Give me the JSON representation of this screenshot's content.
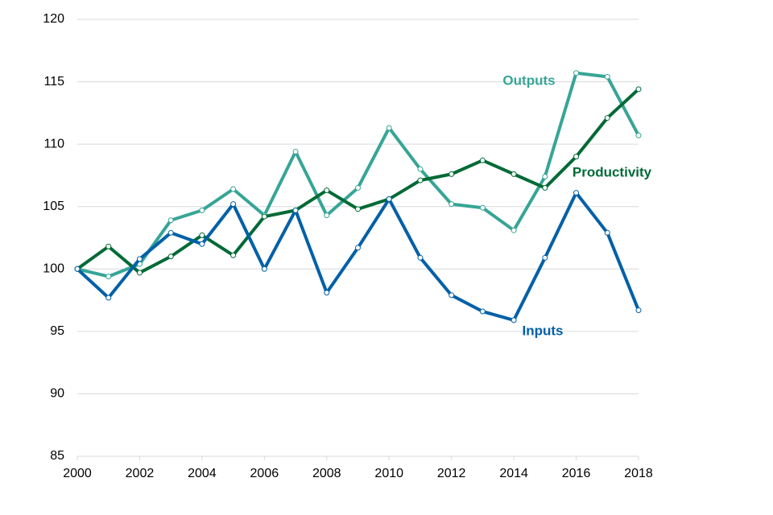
{
  "chart_data": {
    "type": "line",
    "x": [
      2000,
      2001,
      2002,
      2003,
      2004,
      2005,
      2006,
      2007,
      2008,
      2009,
      2010,
      2011,
      2012,
      2013,
      2014,
      2015,
      2016,
      2017,
      2018
    ],
    "series": [
      {
        "name": "Outputs",
        "color": "#36a596",
        "values": [
          100,
          99.4,
          100.4,
          103.9,
          104.7,
          106.4,
          104.3,
          109.4,
          104.3,
          106.5,
          111.3,
          108.0,
          105.2,
          104.9,
          103.1,
          107.4,
          115.7,
          115.4,
          110.7
        ]
      },
      {
        "name": "Productivity",
        "color": "#006a36",
        "values": [
          100,
          101.8,
          99.7,
          101.0,
          102.7,
          101.1,
          104.2,
          104.7,
          106.3,
          104.8,
          105.6,
          107.1,
          107.6,
          108.7,
          107.6,
          106.5,
          109.0,
          112.1,
          114.4
        ]
      },
      {
        "name": "Inputs",
        "color": "#0060a8",
        "values": [
          100,
          97.7,
          100.8,
          102.9,
          102.0,
          105.2,
          100,
          104.7,
          98.1,
          101.7,
          105.6,
          100.9,
          97.9,
          96.6,
          95.9,
          100.9,
          106.1,
          102.9,
          96.7
        ]
      }
    ],
    "xlim": [
      2000,
      2018
    ],
    "xticks": [
      2000,
      2002,
      2004,
      2006,
      2008,
      2010,
      2012,
      2014,
      2016,
      2018
    ],
    "ylim": [
      85,
      120
    ],
    "yticks": [
      85,
      90,
      95,
      100,
      105,
      110,
      115,
      120
    ],
    "grid": true
  }
}
